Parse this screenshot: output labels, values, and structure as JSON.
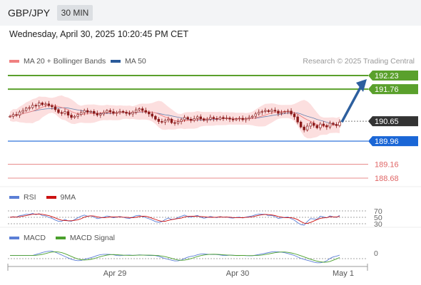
{
  "header": {
    "pair": "GBP/JPY",
    "timeframe": "30 MIN"
  },
  "datetime": "Wednesday, April 30, 2025 10:20:45 PM CET",
  "legend": {
    "ma20": "MA 20 + Bollinger Bands",
    "ma50": "MA 50",
    "credit": "Research © 2025 Trading Central"
  },
  "colors": {
    "resistance": "#5aa02c",
    "current": "#333333",
    "support1": "#1a66d6",
    "support2": "#e06666",
    "ma20": "#f08080",
    "ma50": "#2a5a9a",
    "bbfill": "#fbd9d9",
    "candle": "#8b1a1a",
    "arrow": "#2d5f9e"
  },
  "chart_data": [
    {
      "type": "candlestick",
      "levels": [
        {
          "value": 192.23,
          "kind": "resistance"
        },
        {
          "value": 191.76,
          "kind": "resistance"
        },
        {
          "value": 190.65,
          "kind": "current"
        },
        {
          "value": 189.96,
          "kind": "support"
        },
        {
          "value": 189.16,
          "kind": "support"
        },
        {
          "value": 188.68,
          "kind": "support"
        }
      ],
      "x_labels": [
        "Apr 29",
        "Apr 30",
        "May 1"
      ],
      "close": [
        190.82,
        190.88,
        190.86,
        190.97,
        191.02,
        191.1,
        191.12,
        191.2,
        191.18,
        191.28,
        191.22,
        191.25,
        191.19,
        191.15,
        191.05,
        190.95,
        190.92,
        190.98,
        190.86,
        190.78,
        190.82,
        190.88,
        190.95,
        191.02,
        190.96,
        190.99,
        190.92,
        190.86,
        190.9,
        190.95,
        191.02,
        190.98,
        190.92,
        190.95,
        190.99,
        190.96,
        190.92,
        190.9,
        190.96,
        191.04,
        191.08,
        191.02,
        190.96,
        190.9,
        190.82,
        190.72,
        190.64,
        190.62,
        190.68,
        190.72,
        190.6,
        190.58,
        190.64,
        190.7,
        190.78,
        190.72,
        190.68,
        190.74,
        190.8,
        190.73,
        190.68,
        190.72,
        190.78,
        190.74,
        190.72,
        190.78,
        190.74,
        190.76,
        190.72,
        190.7,
        190.73,
        190.75,
        190.7,
        190.74,
        190.78,
        190.82,
        190.9,
        190.96,
        190.99,
        191.02,
        190.98,
        191.03,
        191.0,
        190.92,
        190.95,
        190.98,
        191.0,
        190.9,
        190.8,
        190.62,
        190.45,
        190.35,
        190.48,
        190.58,
        190.5,
        190.42,
        190.55,
        190.5,
        190.45,
        190.58,
        190.54,
        190.5,
        190.62
      ],
      "rsi_levels": [
        70,
        50,
        30
      ],
      "macd_levels": [
        0
      ],
      "rsi_legend": [
        "RSI",
        "9MA"
      ],
      "macd_legend": [
        "MACD",
        "MACD Signal"
      ]
    }
  ],
  "rsi_legend_labels": {
    "rsi": "RSI",
    "ma": "9MA"
  },
  "macd_legend_labels": {
    "macd": "MACD",
    "signal": "MACD Signal"
  }
}
